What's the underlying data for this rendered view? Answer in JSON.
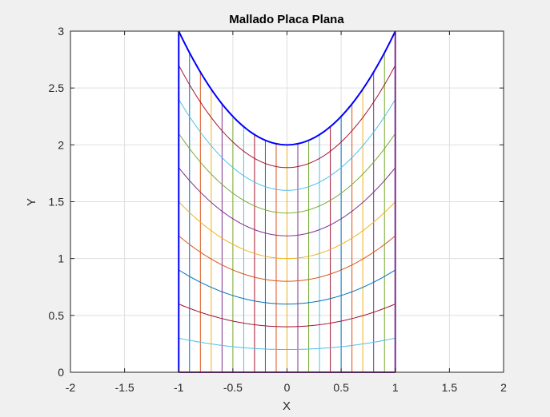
{
  "chart_data": {
    "type": "line",
    "title": "Mallado Placa Plana",
    "xlabel": "X",
    "ylabel": "Y",
    "xlim": [
      -2,
      2
    ],
    "ylim": [
      0,
      3
    ],
    "xticks": [
      -2,
      -1.5,
      -1,
      -0.5,
      0,
      0.5,
      1,
      1.5,
      2
    ],
    "yticks": [
      0,
      0.5,
      1,
      1.5,
      2,
      2.5,
      3
    ],
    "xtick_labels": [
      "-2",
      "-1.5",
      "-1",
      "-0.5",
      "0",
      "0.5",
      "1",
      "1.5",
      "2"
    ],
    "ytick_labels": [
      "0",
      "0.5",
      "1",
      "1.5",
      "2",
      "2.5",
      "3"
    ],
    "grid": true,
    "boundary": {
      "top_curve": "y = x^2 + 2",
      "bottom": "y = 0",
      "x_range": [
        -1,
        1
      ],
      "color": "#0000ff"
    },
    "grid_curves": {
      "description_formula": "y = k*(x^2 + 2), k = 0.1..0.9",
      "k_values": [
        0.1,
        0.2,
        0.3,
        0.4,
        0.5,
        0.6,
        0.7,
        0.8,
        0.9
      ]
    },
    "vertical_lines": {
      "x_values": [
        -0.9,
        -0.8,
        -0.7,
        -0.6,
        -0.5,
        -0.4,
        -0.3,
        -0.2,
        -0.1,
        0,
        0.1,
        0.2,
        0.3,
        0.4,
        0.5,
        0.6,
        0.7,
        0.8,
        0.9
      ]
    },
    "colors": [
      "#0072bd",
      "#d95319",
      "#edb120",
      "#7e2f8e",
      "#77ac30",
      "#4dbeee",
      "#a2142f"
    ]
  }
}
